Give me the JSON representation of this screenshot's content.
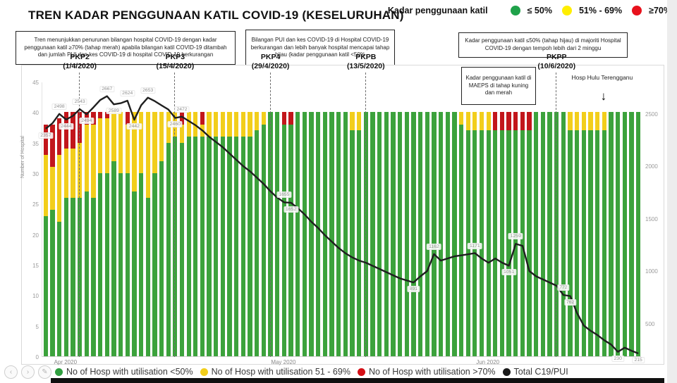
{
  "page": {
    "title": "TREN KADAR PENGGUNAAN KATIL COVID-19 (KESELURUHAN)"
  },
  "top_legend": {
    "label": "Kadar penggunaan katil",
    "items": [
      {
        "label": "≤ 50%",
        "color": "#1fa24a"
      },
      {
        "label": "51% - 69%",
        "color": "#ffee00"
      },
      {
        "label": "≥70%",
        "color": "#e8121c"
      }
    ]
  },
  "callouts": {
    "left": "Tren menunjukkan penurunan bilangan hospital COVID-19 dengan kadar penggunaan katil ≥70% (tahap merah) apabila bilangan katil COVID-19 ditambah dan jumlah PUI dan kes COVID-19 di hospital COVID-19 berkurangan",
    "middle": "Bilangan PUI dan kes COVID-19 di Hospital COVID-19 berkurangan  dan lebih banyak hospital mencapai tahap hijau (kadar penggunaan katil <50%",
    "right": "Kadar penggunaan katil ≤50% (tahap hijau) di majoriti Hospital COVID-19 dengan tempoh lebih dari 2 minggu"
  },
  "bottom_legend": [
    {
      "label": "No of Hosp with utilisation <50%",
      "color": "#2f9e3f"
    },
    {
      "label": "No of Hosp with utilisation 51 - 69%",
      "color": "#f2ce1b"
    },
    {
      "label": "No of Hosp with utilisation >70%",
      "color": "#d40f16"
    },
    {
      "label": "Total C19/PUI",
      "color": "#1a1a1a"
    }
  ],
  "nav_buttons": [
    "chevron-left",
    "chevron-right",
    "pencil"
  ],
  "chart_data": {
    "type": "bar",
    "subtype": "stacked-daily-bars-with-line",
    "title": "TREN KADAR PENGGUNAAN KATIL COVID-19 (KESELURUHAN)",
    "x_start": "27/3/2020",
    "x_end": "22/6/2020",
    "x_unit": "day",
    "n_points": 88,
    "ylabel_left": "Number of Hospital",
    "ylim_left": [
      0,
      45
    ],
    "left_ticks": [
      45,
      40,
      35,
      30,
      25,
      20,
      15,
      10,
      5,
      0
    ],
    "ylim_right": [
      0,
      2800
    ],
    "right_ticks": [
      2500,
      2000,
      1500,
      1000,
      500
    ],
    "grid": "off",
    "months": [
      {
        "label": "Apr 2020",
        "i": 3
      },
      {
        "label": "May 2020",
        "i": 35
      },
      {
        "label": "Jun 2020",
        "i": 65
      }
    ],
    "phases": [
      {
        "label": "PKP2",
        "date": "(1/4/2020)",
        "i": 5
      },
      {
        "label": "PKP3",
        "date": "(15/4/2020)",
        "i": 19
      },
      {
        "label": "PKP4",
        "date": "(29/4/2020)",
        "i": 33
      },
      {
        "label": "PKPB",
        "date": "(13/5/2020)",
        "i": 47
      },
      {
        "label": "PKPP",
        "date": "(10/6/2020)",
        "i": 75
      }
    ],
    "annotations": {
      "maeps": "Kadar penggunaan katil di MAEPS di tahap kuning dan merah",
      "hosp": "Hosp Hulu Terengganu",
      "hosp_i": 82
    },
    "series": [
      {
        "name": "No of Hosp with utilisation <50%",
        "role": "bar",
        "color": "#3ca23c",
        "values": [
          23,
          24,
          22,
          26,
          26,
          26,
          27,
          26,
          30,
          30,
          32,
          30,
          30,
          27,
          30,
          26,
          30,
          32,
          35,
          36,
          35,
          36,
          36,
          36,
          36,
          36,
          36,
          36,
          36,
          36,
          36,
          37,
          38,
          40,
          40,
          38,
          38,
          40,
          40,
          40,
          40,
          40,
          40,
          40,
          40,
          37,
          37,
          40,
          40,
          40,
          40,
          40,
          40,
          40,
          40,
          40,
          40,
          40,
          40,
          40,
          40,
          38,
          37,
          37,
          37,
          37,
          37,
          37,
          37,
          37,
          37,
          37,
          40,
          40,
          40,
          40,
          40,
          37,
          37,
          37,
          37,
          37,
          37,
          40,
          40,
          40,
          40,
          40
        ]
      },
      {
        "name": "No of Hosp with utilisation 51 - 69%",
        "role": "bar",
        "color": "#f2ce1b",
        "values": [
          10,
          7,
          11,
          8,
          8,
          9,
          11,
          12,
          9,
          9,
          8,
          10,
          8,
          13,
          10,
          14,
          10,
          8,
          5,
          4,
          3,
          4,
          4,
          2,
          4,
          4,
          4,
          4,
          4,
          4,
          4,
          3,
          2,
          0,
          0,
          0,
          0,
          0,
          0,
          0,
          0,
          0,
          0,
          0,
          0,
          3,
          3,
          0,
          0,
          0,
          0,
          0,
          0,
          0,
          0,
          0,
          0,
          0,
          0,
          0,
          0,
          2,
          3,
          3,
          3,
          3,
          0,
          0,
          0,
          0,
          0,
          0,
          0,
          0,
          0,
          0,
          0,
          3,
          3,
          3,
          3,
          3,
          3,
          0,
          0,
          0,
          0,
          0
        ]
      },
      {
        "name": "No of Hosp with utilisation >70%",
        "role": "bar",
        "color": "#c2161b",
        "values": [
          5,
          7,
          6,
          6,
          6,
          5,
          2,
          2,
          1,
          1,
          0,
          0,
          2,
          0,
          0,
          0,
          0,
          0,
          0,
          0,
          2,
          0,
          0,
          2,
          0,
          0,
          0,
          0,
          0,
          0,
          0,
          0,
          0,
          0,
          0,
          2,
          2,
          0,
          0,
          0,
          0,
          0,
          0,
          0,
          0,
          0,
          0,
          0,
          0,
          0,
          0,
          0,
          0,
          0,
          0,
          0,
          0,
          0,
          0,
          0,
          0,
          0,
          0,
          0,
          0,
          0,
          3,
          3,
          3,
          3,
          3,
          3,
          0,
          0,
          0,
          0,
          0,
          0,
          0,
          0,
          0,
          0,
          0,
          0,
          0,
          0,
          0,
          0
        ]
      },
      {
        "name": "Total C19/PUI",
        "role": "line",
        "color": "#1f1f1f",
        "values": [
          2357,
          2410,
          2498,
          2444,
          2480,
          2543,
          2494,
          2560,
          2630,
          2667,
          2589,
          2600,
          2624,
          2442,
          2580,
          2653,
          2620,
          2580,
          2540,
          2460,
          2472,
          2430,
          2390,
          2340,
          2280,
          2230,
          2180,
          2120,
          2060,
          2000,
          1950,
          1890,
          1830,
          1760,
          1700,
          1655,
          1652,
          1600,
          1540,
          1470,
          1410,
          1340,
          1280,
          1220,
          1170,
          1130,
          1100,
          1080,
          1050,
          1020,
          990,
          960,
          930,
          910,
          891,
          950,
          1000,
          1162,
          1100,
          1120,
          1140,
          1150,
          1160,
          1171,
          1120,
          1080,
          1120,
          1080,
          1051,
          1259,
          1240,
          1000,
          950,
          920,
          890,
          860,
          772,
          762,
          600,
          480,
          430,
          390,
          340,
          300,
          230,
          270,
          240,
          215
        ]
      }
    ],
    "line_labels": [
      {
        "i": 0,
        "t": "2357",
        "p": "b"
      },
      {
        "i": 2,
        "t": "2498",
        "p": "a"
      },
      {
        "i": 3,
        "t": "2444",
        "p": "b"
      },
      {
        "i": 5,
        "t": "2543",
        "p": "a"
      },
      {
        "i": 6,
        "t": "2494",
        "p": "b"
      },
      {
        "i": 9,
        "t": "2667",
        "p": "a"
      },
      {
        "i": 10,
        "t": "2589",
        "p": "b"
      },
      {
        "i": 12,
        "t": "2624",
        "p": "a"
      },
      {
        "i": 13,
        "t": "2442",
        "p": "b"
      },
      {
        "i": 15,
        "t": "2653",
        "p": "a"
      },
      {
        "i": 19,
        "t": "2460",
        "p": "b"
      },
      {
        "i": 20,
        "t": "2472",
        "p": "a"
      },
      {
        "i": 35,
        "t": "1655",
        "p": "a"
      },
      {
        "i": 36,
        "t": "1652",
        "p": "b"
      },
      {
        "i": 54,
        "t": "891",
        "p": "b"
      },
      {
        "i": 57,
        "t": "1162",
        "p": "a"
      },
      {
        "i": 63,
        "t": "1171",
        "p": "a"
      },
      {
        "i": 68,
        "t": "1051",
        "p": "b"
      },
      {
        "i": 69,
        "t": "1259",
        "p": "a"
      },
      {
        "i": 76,
        "t": "772",
        "p": "a"
      },
      {
        "i": 77,
        "t": "762",
        "p": "b"
      },
      {
        "i": 84,
        "t": "230",
        "p": "b"
      },
      {
        "i": 87,
        "t": "215",
        "p": "b"
      }
    ]
  }
}
